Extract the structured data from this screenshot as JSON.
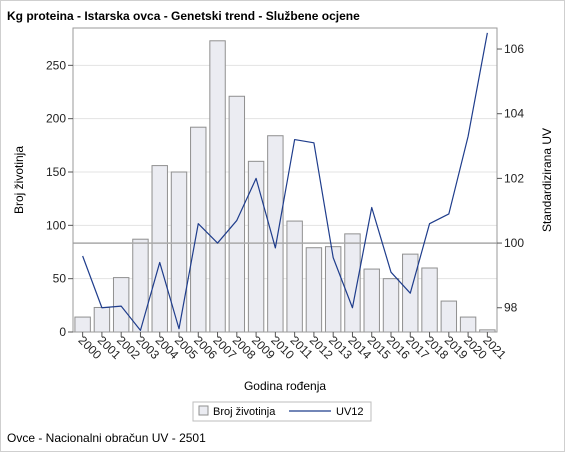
{
  "title": "Kg proteina - Istarska ovca - Genetski trend - Službene ocjene",
  "footnote": "Ovce - Nacionalni obračun UV - 2501",
  "colors": {
    "bar_fill": "#ebecf2",
    "bar_stroke": "#8f8f8f",
    "line": "#1f3d8c",
    "reference_line": "#a9a9a9",
    "grid": "#e3e3e3"
  },
  "chart_data": {
    "type": "bar",
    "title": "Kg proteina - Istarska ovca - Genetski trend - Službene ocjene",
    "xlabel": "Godina rođenja",
    "ylabel": "Broj životinja",
    "y2label": "Standardizirana UV",
    "categories": [
      "2000",
      "2001",
      "2002",
      "2003",
      "2004",
      "2005",
      "2006",
      "2007",
      "2008",
      "2009",
      "2010",
      "2011",
      "2012",
      "2013",
      "2014",
      "2015",
      "2016",
      "2017",
      "2018",
      "2019",
      "2020",
      "2021"
    ],
    "ylim": [
      0,
      285
    ],
    "yticks": [
      0,
      50,
      100,
      150,
      200,
      250
    ],
    "y2lim": [
      97.25,
      106.65
    ],
    "y2ticks": [
      98,
      100,
      102,
      104,
      106
    ],
    "reference_line_y2": 100,
    "grid": true,
    "legend_position": "bottom",
    "series": [
      {
        "name": "Broj životinja",
        "type": "bar",
        "axis": "left",
        "values": [
          14,
          23,
          51,
          87,
          156,
          150,
          192,
          273,
          221,
          160,
          184,
          104,
          79,
          80,
          92,
          59,
          50,
          73,
          60,
          29,
          14,
          2
        ]
      },
      {
        "name": "UV12",
        "type": "line",
        "axis": "right",
        "values": [
          99.6,
          98.0,
          98.05,
          97.3,
          99.4,
          97.35,
          100.6,
          100.0,
          100.7,
          102.0,
          99.85,
          103.2,
          103.1,
          99.55,
          98.0,
          101.1,
          99.1,
          98.45,
          100.6,
          100.9,
          103.3,
          106.5
        ]
      }
    ]
  }
}
